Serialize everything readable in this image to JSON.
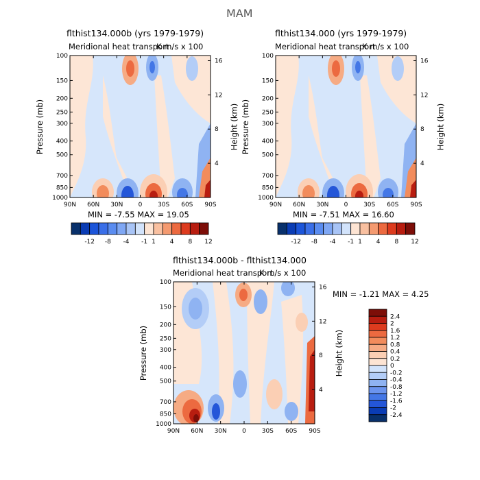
{
  "figure_title": "MAM",
  "panels": [
    {
      "title": "flthist134.000b (yrs 1979-1979)",
      "subtitle_left": "Meridional heat transport",
      "subtitle_right": "K m/s x 100",
      "ylabel_left": "Pressure (mb)",
      "ylabel_right": "Height (km)",
      "min_max": "MIN =   -7.55   MAX =   19.05"
    },
    {
      "title": "flthist134.000 (yrs 1979-1979)",
      "subtitle_left": "Meridional heat transport",
      "subtitle_right": "K m/s x 100",
      "ylabel_left": "Pressure (mb)",
      "ylabel_right": "Height (km)",
      "min_max": "MIN =   -7.51   MAX =   16.60"
    },
    {
      "title": "flthist134.000b - flthist134.000",
      "subtitle_left": "Meridional heat transport",
      "subtitle_right": "K m/s x 100",
      "ylabel_left": "Pressure (mb)",
      "ylabel_right": "Height (km)",
      "min_max": "MIN =   -1.21   MAX =   4.25"
    }
  ],
  "colorbar_top": {
    "labels": [
      "-12",
      "-8",
      "-4",
      "-1",
      "1",
      "4",
      "8",
      "12"
    ],
    "colors": [
      "#08306b",
      "#0a3cb4",
      "#1c55d9",
      "#3a6fe8",
      "#5a8cf0",
      "#7fa7f4",
      "#a8c4f6",
      "#d2e3fb",
      "#fde4d3",
      "#f9c0a0",
      "#f49a70",
      "#ec6a40",
      "#dd3b1e",
      "#b81d10",
      "#7d0e08"
    ]
  },
  "colorbar_diff": {
    "labels": [
      "2.4",
      "2",
      "1.6",
      "1.2",
      "0.8",
      "0.4",
      "0.2",
      "0",
      "-0.2",
      "-0.4",
      "-0.8",
      "-1.2",
      "-1.6",
      "-2",
      "-2.4"
    ],
    "colors": [
      "#7d0e08",
      "#b81d10",
      "#dd3b1e",
      "#ec6a40",
      "#f28c5c",
      "#f6ab84",
      "#fbcfb4",
      "#fde4d3",
      "#d2e3fb",
      "#b3cdf7",
      "#8fb3f2",
      "#6b94ee",
      "#4477e6",
      "#2456d8",
      "#0a3cb4",
      "#08306b"
    ]
  },
  "colors": {
    "neg_light": "#d6e6fb",
    "pos_light": "#fde6d6"
  },
  "chart_data": [
    {
      "type": "heatmap",
      "title": "flthist134.000b (yrs 1979-1979)",
      "subtitle": "Meridional heat transport  K m/s x 100",
      "x": [
        "90N",
        "60N",
        "30N",
        "0",
        "30S",
        "60S",
        "90S"
      ],
      "y_pressure": [
        "1000",
        "850",
        "700",
        "500",
        "400",
        "300",
        "250",
        "200",
        "150",
        "100"
      ],
      "y_height": [
        "4",
        "8",
        "12",
        "16"
      ],
      "xlabel": "",
      "ylabel": "Pressure (mb)",
      "ylabel_right": "Height (km)",
      "min": -7.55,
      "max": 19.05
    },
    {
      "type": "heatmap",
      "title": "flthist134.000 (yrs 1979-1979)",
      "subtitle": "Meridional heat transport  K m/s x 100",
      "x": [
        "90N",
        "60N",
        "30N",
        "0",
        "30S",
        "60S",
        "90S"
      ],
      "y_pressure": [
        "1000",
        "850",
        "700",
        "500",
        "400",
        "300",
        "250",
        "200",
        "150",
        "100"
      ],
      "y_height": [
        "4",
        "8",
        "12",
        "16"
      ],
      "xlabel": "",
      "ylabel": "Pressure (mb)",
      "ylabel_right": "Height (km)",
      "min": -7.51,
      "max": 16.6
    },
    {
      "type": "heatmap",
      "title": "flthist134.000b - flthist134.000",
      "subtitle": "Meridional heat transport  K m/s x 100",
      "x": [
        "90N",
        "60N",
        "30N",
        "0",
        "30S",
        "60S",
        "90S"
      ],
      "y_pressure": [
        "1000",
        "850",
        "700",
        "500",
        "400",
        "300",
        "250",
        "200",
        "150",
        "100"
      ],
      "y_height": [
        "4",
        "8",
        "12",
        "16"
      ],
      "xlabel": "",
      "ylabel": "Pressure (mb)",
      "ylabel_right": "Height (km)",
      "min": -1.21,
      "max": 4.25
    }
  ]
}
